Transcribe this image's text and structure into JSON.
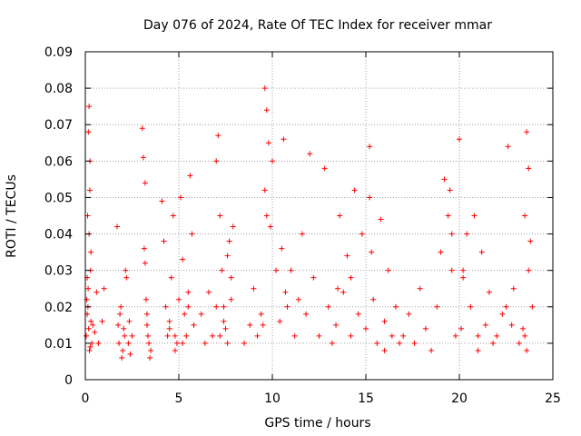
{
  "chart_data": {
    "type": "scatter",
    "title": "Day 076 of 2024, Rate Of TEC Index for receiver mmar",
    "xlabel": "GPS time / hours",
    "ylabel": "ROTI / TECUs",
    "xlim": [
      0,
      25
    ],
    "ylim": [
      0,
      0.09
    ],
    "x_ticks": [
      "0",
      "5",
      "10",
      "15",
      "20",
      "25"
    ],
    "y_ticks": [
      "0",
      "0.01",
      "0.02",
      "0.03",
      "0.04",
      "0.05",
      "0.06",
      "0.07",
      "0.08",
      "0.09"
    ],
    "grid": true,
    "marker": "plus",
    "color": "#ff0000",
    "series": [
      {
        "x": [
          0.05,
          0.1,
          0.15,
          0.2,
          0.25,
          0.3,
          0.12,
          0.18,
          0.22,
          0.08,
          0.28,
          0.35,
          0.4,
          0.16,
          0.24,
          0.2,
          0.1,
          0.3,
          0.14,
          0.26,
          0.5,
          0.6,
          0.7,
          0.9,
          1.0,
          1.7,
          1.75,
          1.8,
          1.9,
          2.0,
          2.1,
          2.2,
          1.85,
          1.95,
          2.05,
          2.15,
          2.3,
          2.4,
          2.5,
          2.35,
          3.05,
          3.1,
          3.2,
          3.3,
          3.4,
          3.5,
          3.15,
          3.25,
          3.35,
          3.45,
          3.2,
          3.3,
          4.1,
          4.2,
          4.3,
          4.4,
          4.5,
          4.6,
          4.7,
          4.8,
          4.9,
          5.0,
          5.1,
          5.2,
          5.3,
          5.4,
          5.5,
          5.6,
          4.5,
          4.8,
          5.2,
          5.5,
          5.7,
          5.8,
          6.2,
          6.4,
          6.6,
          6.8,
          7.0,
          7.1,
          7.2,
          7.3,
          7.4,
          7.5,
          7.6,
          7.7,
          7.8,
          7.9,
          7.0,
          7.2,
          7.4,
          7.6,
          7.8,
          8.5,
          8.8,
          9.0,
          9.2,
          9.4,
          9.6,
          9.7,
          9.8,
          9.9,
          10.0,
          10.2,
          10.4,
          10.6,
          10.8,
          11.0,
          11.2,
          11.4,
          11.6,
          11.8,
          12.0,
          9.6,
          9.7,
          9.5,
          10.5,
          10.7,
          12.2,
          12.5,
          12.8,
          13.0,
          13.2,
          13.4,
          13.6,
          13.8,
          14.0,
          14.2,
          14.4,
          14.6,
          14.8,
          15.0,
          15.2,
          15.4,
          15.6,
          15.8,
          16.0,
          16.2,
          16.4,
          16.6,
          16.8,
          13.5,
          14.2,
          15.2,
          15.3,
          16.0,
          17.0,
          17.3,
          17.6,
          17.9,
          18.2,
          18.5,
          18.8,
          19.0,
          19.2,
          19.4,
          19.6,
          19.8,
          20.0,
          20.2,
          20.4,
          20.6,
          20.8,
          21.0,
          21.2,
          21.4,
          21.6,
          21.8,
          19.5,
          19.6,
          20.1,
          20.2,
          21.0,
          22.0,
          22.3,
          22.6,
          22.9,
          23.2,
          23.4,
          23.5,
          23.6,
          23.7,
          23.8,
          23.9,
          22.5,
          22.8,
          23.5,
          23.7,
          23.6
        ],
        "y": [
          0.012,
          0.018,
          0.025,
          0.075,
          0.06,
          0.035,
          0.045,
          0.014,
          0.008,
          0.022,
          0.03,
          0.01,
          0.015,
          0.068,
          0.052,
          0.04,
          0.028,
          0.016,
          0.02,
          0.009,
          0.013,
          0.024,
          0.01,
          0.016,
          0.025,
          0.042,
          0.015,
          0.01,
          0.02,
          0.008,
          0.012,
          0.028,
          0.018,
          0.006,
          0.014,
          0.03,
          0.01,
          0.007,
          0.012,
          0.016,
          0.069,
          0.061,
          0.054,
          0.015,
          0.01,
          0.008,
          0.036,
          0.022,
          0.012,
          0.006,
          0.032,
          0.018,
          0.049,
          0.038,
          0.02,
          0.012,
          0.016,
          0.028,
          0.045,
          0.012,
          0.01,
          0.022,
          0.05,
          0.033,
          0.018,
          0.012,
          0.024,
          0.056,
          0.014,
          0.008,
          0.01,
          0.02,
          0.04,
          0.015,
          0.018,
          0.01,
          0.024,
          0.012,
          0.06,
          0.067,
          0.045,
          0.03,
          0.02,
          0.014,
          0.01,
          0.038,
          0.028,
          0.042,
          0.02,
          0.012,
          0.016,
          0.034,
          0.022,
          0.01,
          0.015,
          0.025,
          0.012,
          0.018,
          0.08,
          0.074,
          0.065,
          0.042,
          0.06,
          0.03,
          0.016,
          0.066,
          0.02,
          0.03,
          0.012,
          0.022,
          0.04,
          0.018,
          0.062,
          0.052,
          0.045,
          0.015,
          0.036,
          0.024,
          0.028,
          0.012,
          0.058,
          0.02,
          0.01,
          0.015,
          0.045,
          0.024,
          0.034,
          0.012,
          0.052,
          0.018,
          0.04,
          0.014,
          0.064,
          0.022,
          0.01,
          0.044,
          0.016,
          0.03,
          0.012,
          0.02,
          0.01,
          0.025,
          0.028,
          0.05,
          0.035,
          0.008,
          0.012,
          0.018,
          0.01,
          0.025,
          0.014,
          0.008,
          0.02,
          0.035,
          0.055,
          0.045,
          0.03,
          0.012,
          0.066,
          0.028,
          0.04,
          0.02,
          0.045,
          0.012,
          0.035,
          0.015,
          0.024,
          0.01,
          0.052,
          0.04,
          0.014,
          0.03,
          0.008,
          0.012,
          0.018,
          0.064,
          0.025,
          0.01,
          0.014,
          0.045,
          0.068,
          0.058,
          0.038,
          0.02,
          0.02,
          0.015,
          0.012,
          0.03,
          0.008
        ]
      }
    ]
  }
}
